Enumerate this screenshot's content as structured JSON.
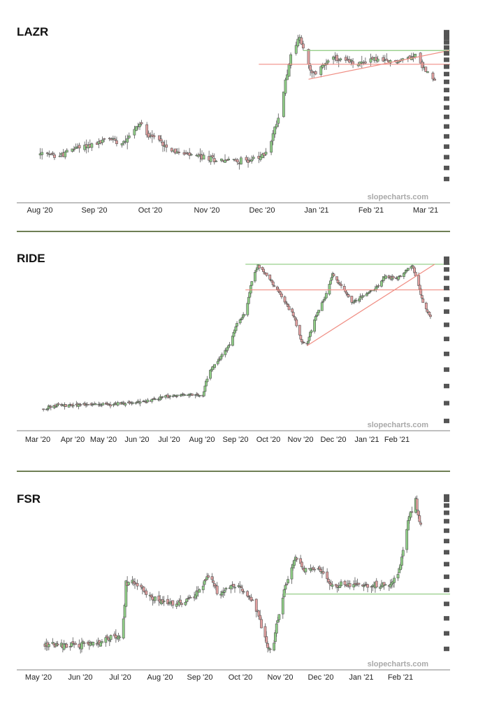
{
  "watermark": "slopecharts.com",
  "colors": {
    "up": "#8fce86",
    "down": "#e2a0a0",
    "wick": "#555555",
    "support_green": "#8cc97e",
    "resistance_red": "#f08e84",
    "trend_red": "#f08e84",
    "separator": "#6f7f55",
    "price_marker": "#555555"
  },
  "chart_data": [
    {
      "type": "candlestick",
      "title": "LAZR",
      "xlabel": "",
      "ylabel": "",
      "x_tick_labels": [
        "Aug '20",
        "Sep '20",
        "Oct '20",
        "Nov '20",
        "Dec '20",
        "Jan '21",
        "Feb '21",
        "Mar '21"
      ],
      "x_range": [
        "2020-07-20",
        "2021-03-02"
      ],
      "y_scale": "log",
      "ylim": [
        18,
        50
      ],
      "y_tick_labels_visible": false,
      "trend": [
        {
          "date": "2020-07-23",
          "close": 23.5
        },
        {
          "date": "2020-08-03",
          "close": 23.3
        },
        {
          "date": "2020-08-13",
          "close": 24.6
        },
        {
          "date": "2020-08-24",
          "close": 25.0
        },
        {
          "date": "2020-08-30",
          "close": 26.0
        },
        {
          "date": "2020-09-07",
          "close": 25.3
        },
        {
          "date": "2020-09-13",
          "close": 27.0
        },
        {
          "date": "2020-09-17",
          "close": 28.3
        },
        {
          "date": "2020-09-22",
          "close": 26.6
        },
        {
          "date": "2020-10-02",
          "close": 24.8
        },
        {
          "date": "2020-10-09",
          "close": 23.6
        },
        {
          "date": "2020-10-20",
          "close": 23.2
        },
        {
          "date": "2020-10-30",
          "close": 22.8
        },
        {
          "date": "2020-11-12",
          "close": 22.6
        },
        {
          "date": "2020-11-23",
          "close": 22.9
        },
        {
          "date": "2020-11-26",
          "close": 23.5
        },
        {
          "date": "2020-11-30",
          "close": 25.6
        },
        {
          "date": "2020-12-03",
          "close": 28.5
        },
        {
          "date": "2020-12-06",
          "close": 31.0
        },
        {
          "date": "2020-12-07",
          "close": 34.5
        },
        {
          "date": "2020-12-08",
          "close": 37.0
        },
        {
          "date": "2020-12-12",
          "close": 44.5
        },
        {
          "date": "2020-12-16",
          "close": 47.5
        },
        {
          "date": "2020-12-21",
          "close": 40.0
        },
        {
          "date": "2020-12-23",
          "close": 38.0
        },
        {
          "date": "2020-12-27",
          "close": 39.0
        },
        {
          "date": "2021-01-01",
          "close": 42.0
        },
        {
          "date": "2021-01-09",
          "close": 41.5
        },
        {
          "date": "2021-01-18",
          "close": 40.5
        },
        {
          "date": "2021-01-26",
          "close": 42.0
        },
        {
          "date": "2021-02-02",
          "close": 41.0
        },
        {
          "date": "2021-02-12",
          "close": 41.5
        },
        {
          "date": "2021-02-19",
          "close": 43.0
        },
        {
          "date": "2021-02-22",
          "close": 40.5
        },
        {
          "date": "2021-02-26",
          "close": 38.5
        },
        {
          "date": "2021-03-02",
          "close": 36.5
        }
      ],
      "horizontal_lines": [
        {
          "label": "resistance",
          "price": 44.0,
          "color": "#8cc97e",
          "from": "2020-12-18"
        },
        {
          "label": "support",
          "price": 40.5,
          "color": "#f08e84",
          "from": "2020-11-23"
        }
      ],
      "trendlines": [
        {
          "start_date": "2020-12-21",
          "start_price": 37.0,
          "end_date": "2021-03-10",
          "end_price": 44.0,
          "color": "#f08e84"
        }
      ],
      "price_markers": 20,
      "legend": "none",
      "grid": false
    },
    {
      "type": "candlestick",
      "title": "RIDE",
      "xlabel": "",
      "ylabel": "",
      "x_tick_labels": [
        "Mar '20",
        "Apr '20",
        "May '20",
        "Jun '20",
        "Jul '20",
        "Aug '20",
        "Sep '20",
        "Oct '20",
        "Nov '20",
        "Dec '20",
        "Jan '21",
        "Feb '21"
      ],
      "x_range": [
        "2020-02-20",
        "2021-03-02"
      ],
      "y_scale": "log",
      "ylim": [
        5,
        40
      ],
      "y_tick_labels_visible": false,
      "trend": [
        {
          "date": "2020-02-28",
          "close": 6.3
        },
        {
          "date": "2020-03-10",
          "close": 6.5
        },
        {
          "date": "2020-04-01",
          "close": 6.6
        },
        {
          "date": "2020-05-01",
          "close": 6.6
        },
        {
          "date": "2020-06-01",
          "close": 6.8
        },
        {
          "date": "2020-06-20",
          "close": 7.2
        },
        {
          "date": "2020-07-10",
          "close": 7.4
        },
        {
          "date": "2020-07-27",
          "close": 7.3
        },
        {
          "date": "2020-08-01",
          "close": 9.5
        },
        {
          "date": "2020-08-10",
          "close": 11.0
        },
        {
          "date": "2020-08-20",
          "close": 13.0
        },
        {
          "date": "2020-08-28",
          "close": 17.0
        },
        {
          "date": "2020-09-05",
          "close": 19.5
        },
        {
          "date": "2020-09-12",
          "close": 30.0
        },
        {
          "date": "2020-09-17",
          "close": 34.0
        },
        {
          "date": "2020-09-28",
          "close": 29.0
        },
        {
          "date": "2020-10-08",
          "close": 24.0
        },
        {
          "date": "2020-10-20",
          "close": 19.0
        },
        {
          "date": "2020-10-28",
          "close": 14.0
        },
        {
          "date": "2020-11-02",
          "close": 13.5
        },
        {
          "date": "2020-11-10",
          "close": 18.5
        },
        {
          "date": "2020-11-20",
          "close": 24.0
        },
        {
          "date": "2020-11-26",
          "close": 31.0
        },
        {
          "date": "2020-12-05",
          "close": 26.0
        },
        {
          "date": "2020-12-15",
          "close": 22.0
        },
        {
          "date": "2020-12-26",
          "close": 24.0
        },
        {
          "date": "2021-01-05",
          "close": 26.0
        },
        {
          "date": "2021-01-14",
          "close": 30.0
        },
        {
          "date": "2021-01-25",
          "close": 29.0
        },
        {
          "date": "2021-02-03",
          "close": 32.0
        },
        {
          "date": "2021-02-09",
          "close": 34.0
        },
        {
          "date": "2021-02-15",
          "close": 26.5
        },
        {
          "date": "2021-02-19",
          "close": 22.0
        },
        {
          "date": "2021-02-26",
          "close": 18.5
        }
      ],
      "horizontal_lines": [
        {
          "label": "resistance",
          "price": 34.5,
          "color": "#8cc97e",
          "from": "2020-09-05"
        },
        {
          "label": "support",
          "price": 25.5,
          "color": "#f08e84",
          "from": "2020-09-05"
        }
      ],
      "trendlines": [
        {
          "start_date": "2020-11-02",
          "start_price": 13.2,
          "end_date": "2021-03-02",
          "end_price": 34.5,
          "color": "#f08e84"
        }
      ],
      "price_markers": 14,
      "legend": "none",
      "grid": false
    },
    {
      "type": "candlestick",
      "title": "FSR",
      "xlabel": "",
      "ylabel": "",
      "x_tick_labels": [
        "May '20",
        "Jun '20",
        "Jul '20",
        "Aug '20",
        "Sep '20",
        "Oct '20",
        "Nov '20",
        "Dec '20",
        "Jan '21",
        "Feb '21"
      ],
      "x_range": [
        "2020-04-20",
        "2021-03-02"
      ],
      "y_scale": "log",
      "ylim": [
        9,
        28
      ],
      "y_tick_labels_visible": false,
      "trend": [
        {
          "date": "2020-04-28",
          "close": 10.2
        },
        {
          "date": "2020-05-20",
          "close": 10.2
        },
        {
          "date": "2020-06-10",
          "close": 10.3
        },
        {
          "date": "2020-06-20",
          "close": 10.8
        },
        {
          "date": "2020-06-28",
          "close": 10.6
        },
        {
          "date": "2020-07-01",
          "close": 15.2
        },
        {
          "date": "2020-07-08",
          "close": 15.3
        },
        {
          "date": "2020-07-20",
          "close": 14.0
        },
        {
          "date": "2020-08-01",
          "close": 13.3
        },
        {
          "date": "2020-08-15",
          "close": 13.4
        },
        {
          "date": "2020-08-25",
          "close": 14.2
        },
        {
          "date": "2020-09-05",
          "close": 16.0
        },
        {
          "date": "2020-09-12",
          "close": 14.2
        },
        {
          "date": "2020-09-20",
          "close": 14.8
        },
        {
          "date": "2020-09-28",
          "close": 14.9
        },
        {
          "date": "2020-10-10",
          "close": 13.5
        },
        {
          "date": "2020-10-18",
          "close": 10.9
        },
        {
          "date": "2020-10-24",
          "close": 9.5
        },
        {
          "date": "2020-10-28",
          "close": 11.5
        },
        {
          "date": "2020-11-03",
          "close": 14.5
        },
        {
          "date": "2020-11-12",
          "close": 18.0
        },
        {
          "date": "2020-11-20",
          "close": 16.5
        },
        {
          "date": "2020-11-30",
          "close": 17.0
        },
        {
          "date": "2020-12-10",
          "close": 15.0
        },
        {
          "date": "2020-12-25",
          "close": 15.2
        },
        {
          "date": "2021-01-10",
          "close": 15.0
        },
        {
          "date": "2021-01-25",
          "close": 15.2
        },
        {
          "date": "2021-02-01",
          "close": 16.0
        },
        {
          "date": "2021-02-05",
          "close": 18.8
        },
        {
          "date": "2021-02-10",
          "close": 23.5
        },
        {
          "date": "2021-02-15",
          "close": 26.0
        },
        {
          "date": "2021-02-19",
          "close": 22.0
        }
      ],
      "horizontal_lines": [
        {
          "label": "support",
          "price": 14.2,
          "color": "#8cc97e",
          "from": "2020-11-03"
        }
      ],
      "trendlines": [],
      "price_markers": 15,
      "legend": "none",
      "grid": false
    }
  ]
}
